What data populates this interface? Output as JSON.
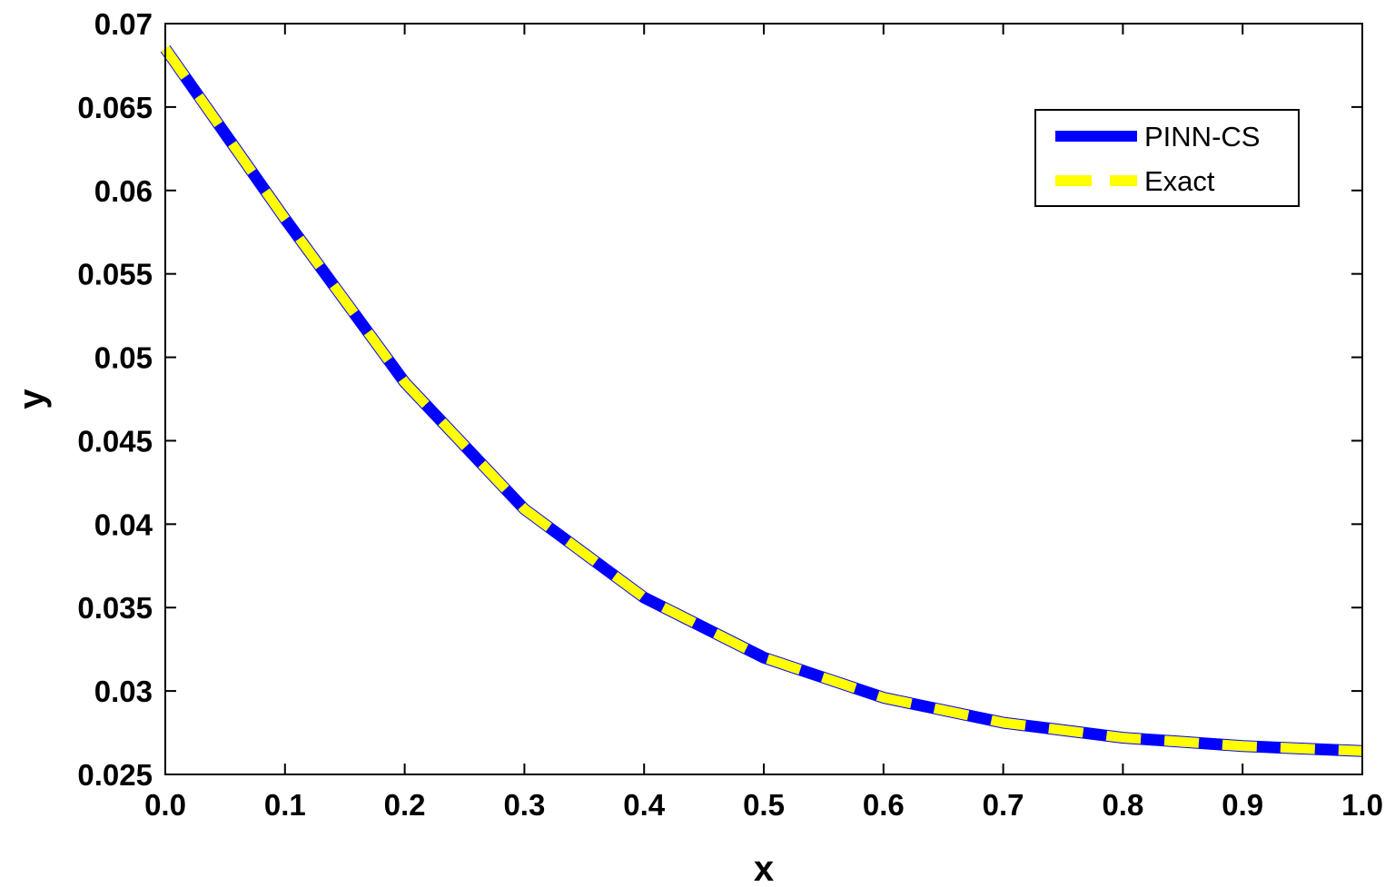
{
  "chart_data": {
    "type": "line",
    "title": "",
    "xlabel": "x",
    "ylabel": "y",
    "xlim": [
      0.0,
      1.0
    ],
    "ylim": [
      0.025,
      0.07
    ],
    "x_ticks": [
      "0.0",
      "0.1",
      "0.2",
      "0.3",
      "0.4",
      "0.5",
      "0.6",
      "0.7",
      "0.8",
      "0.9",
      "1.0"
    ],
    "y_ticks": [
      "0.025",
      "0.03",
      "0.035",
      "0.04",
      "0.045",
      "0.05",
      "0.055",
      "0.06",
      "0.065",
      "0.07"
    ],
    "x": [
      0.0,
      0.1,
      0.2,
      0.3,
      0.4,
      0.5,
      0.6,
      0.7,
      0.8,
      0.9,
      1.0
    ],
    "series": [
      {
        "name": "PINN-CS",
        "color": "#0000ff",
        "style": "solid",
        "values": [
          0.0685,
          0.0583,
          0.0485,
          0.0409,
          0.0356,
          0.032,
          0.0296,
          0.0281,
          0.0272,
          0.0267,
          0.0264
        ]
      },
      {
        "name": "Exact",
        "color": "#ffff00",
        "style": "dashed",
        "values": [
          0.0685,
          0.0583,
          0.0485,
          0.0409,
          0.0356,
          0.032,
          0.0296,
          0.0281,
          0.0272,
          0.0267,
          0.0264
        ]
      }
    ],
    "legend": {
      "position": "top-right",
      "entries": [
        "PINN-CS",
        "Exact"
      ]
    },
    "grid": false
  }
}
